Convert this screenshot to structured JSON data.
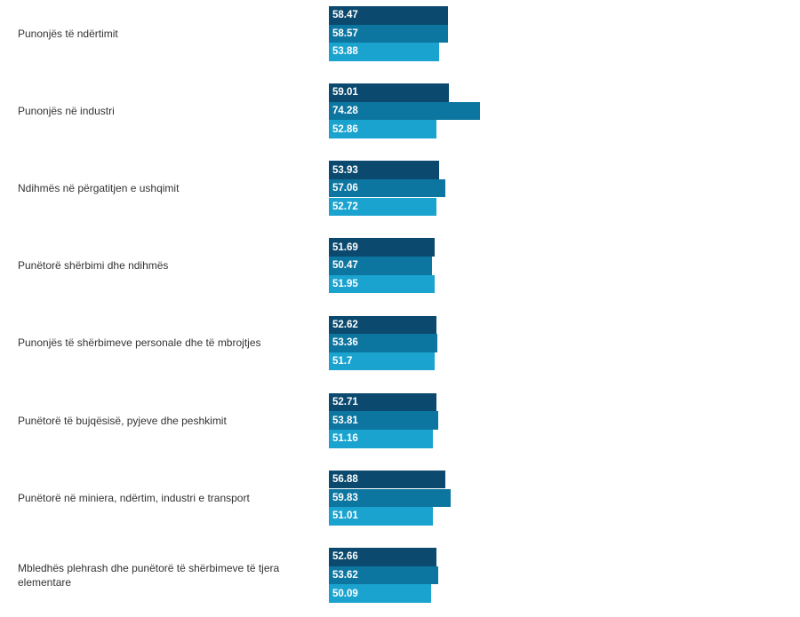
{
  "chart_data": {
    "type": "bar",
    "orientation": "horizontal",
    "categories": [
      "Punonjës të ndërtimit",
      "Punonjës në industri",
      "Ndihmës në përgatitjen e ushqimit",
      "Punëtorë shërbimi dhe ndihmës",
      "Punonjës të shërbimeve personale dhe të mbrojtjes",
      "Punëtorë të bujqësisë, pyjeve dhe peshkimit",
      "Punëtorë në miniera, ndërtim, industri e transport",
      "Mbledhës plehrash dhe punëtorë të shërbimeve të tjera elementare"
    ],
    "series": [
      {
        "color": "#0b4a6e",
        "values": [
          58.47,
          59.01,
          53.93,
          51.69,
          52.62,
          52.71,
          56.88,
          52.66
        ]
      },
      {
        "color": "#0d76a0",
        "values": [
          58.57,
          74.28,
          57.06,
          50.47,
          53.36,
          53.81,
          59.83,
          53.62
        ]
      },
      {
        "color": "#1ba3cf",
        "values": [
          53.88,
          52.86,
          52.72,
          51.95,
          51.7,
          51.16,
          51.01,
          50.09
        ]
      }
    ],
    "data_labels": true
  }
}
